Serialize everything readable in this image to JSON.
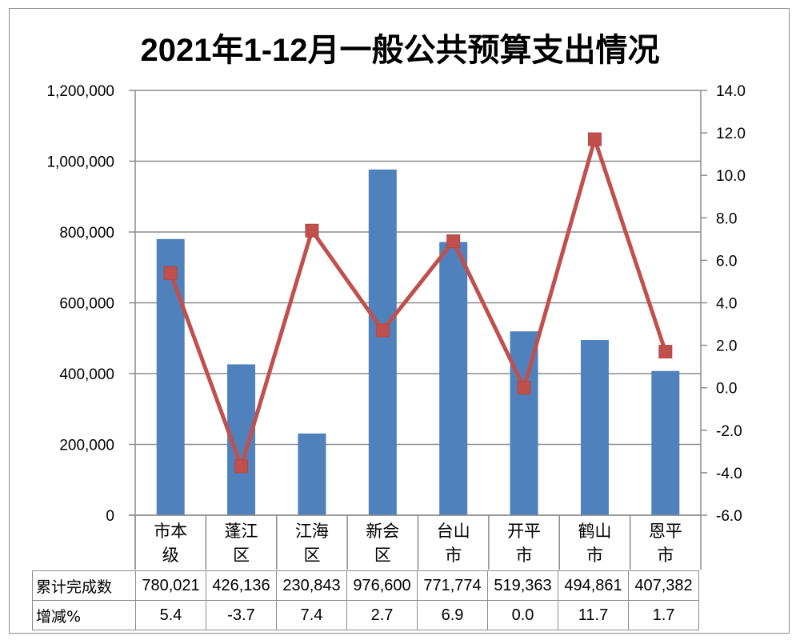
{
  "title": "2021年1-12月一般公共预算支出情况",
  "colors": {
    "bar": "#4F81BD",
    "line": "#C0504D",
    "grid": "#8c8c8c"
  },
  "left_axis": {
    "ticks": [
      "1,200,000",
      "1,000,000",
      "800,000",
      "600,000",
      "400,000",
      "200,000",
      "0"
    ]
  },
  "right_axis": {
    "ticks": [
      "14.0",
      "12.0",
      "10.0",
      "8.0",
      "6.0",
      "4.0",
      "2.0",
      "0.0",
      "-2.0",
      "-4.0",
      "-6.0"
    ]
  },
  "categories": [
    {
      "line1": "市本",
      "line2": "级"
    },
    {
      "line1": "蓬江",
      "line2": "区"
    },
    {
      "line1": "江海",
      "line2": "区"
    },
    {
      "line1": "新会",
      "line2": "区"
    },
    {
      "line1": "台山",
      "line2": "市"
    },
    {
      "line1": "开平",
      "line2": "市"
    },
    {
      "line1": "鹤山",
      "line2": "市"
    },
    {
      "line1": "恩平",
      "line2": "市"
    }
  ],
  "table": {
    "rows": [
      {
        "label": "累计完成数",
        "values": [
          "780,021",
          "426,136",
          "230,843",
          "976,600",
          "771,774",
          "519,363",
          "494,861",
          "407,382"
        ]
      },
      {
        "label": "增减%",
        "values": [
          "5.4",
          "-3.7",
          "7.4",
          "2.7",
          "6.9",
          "0.0",
          "11.7",
          "1.7"
        ]
      }
    ]
  },
  "chart_data": {
    "type": "bar+line",
    "title": "2021年1-12月一般公共预算支出情况",
    "categories": [
      "市本级",
      "蓬江区",
      "江海区",
      "新会区",
      "台山市",
      "开平市",
      "鹤山市",
      "恩平市"
    ],
    "series": [
      {
        "name": "累计完成数",
        "type": "bar",
        "axis": "left",
        "color": "#4F81BD",
        "values": [
          780021,
          426136,
          230843,
          976600,
          771774,
          519363,
          494861,
          407382
        ]
      },
      {
        "name": "增减%",
        "type": "line",
        "axis": "right",
        "color": "#C0504D",
        "marker": "square",
        "values": [
          5.4,
          -3.7,
          7.4,
          2.7,
          6.9,
          0.0,
          11.7,
          1.7
        ]
      }
    ],
    "left_ylim": [
      0,
      1200000
    ],
    "left_ytick_step": 200000,
    "right_ylim": [
      -6,
      14
    ],
    "right_ytick_step": 2,
    "grid": true,
    "legend": "data table below chart",
    "xlabel": "",
    "ylabel": ""
  }
}
